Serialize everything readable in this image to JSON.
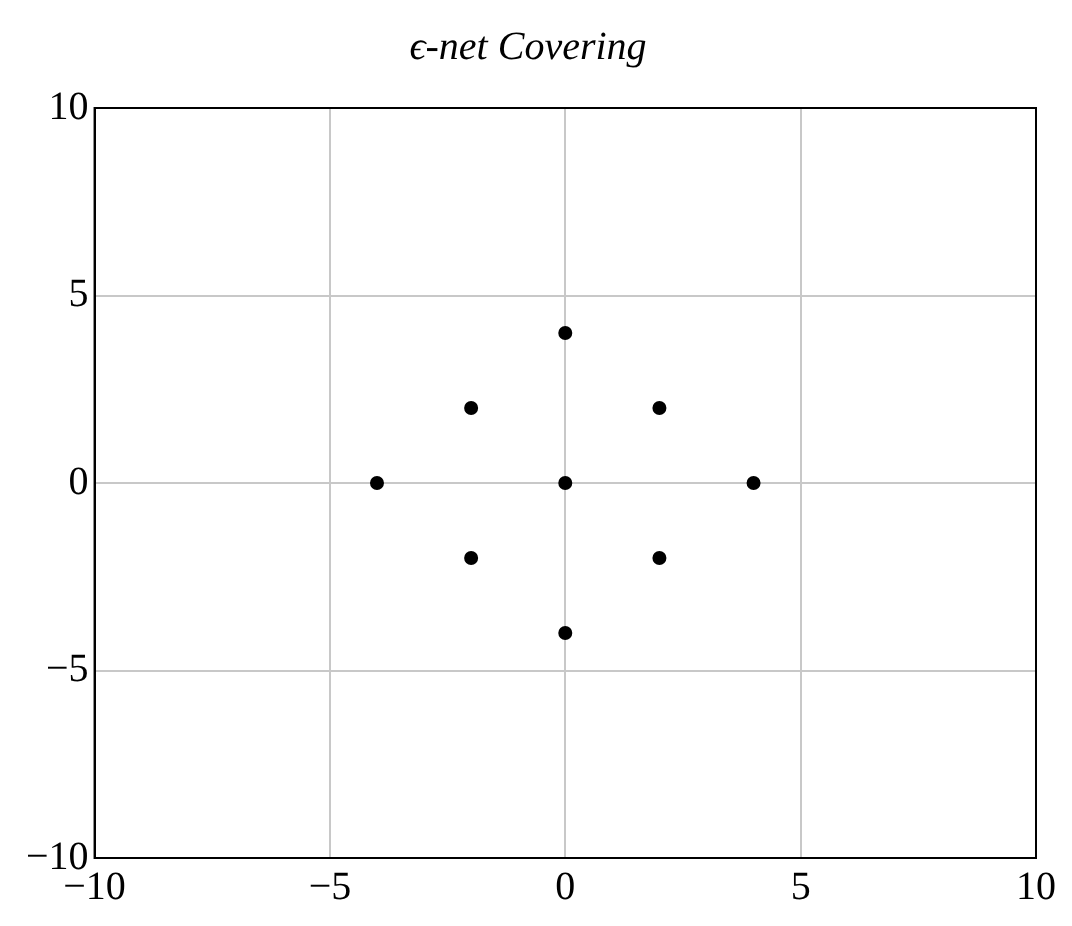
{
  "chart_data": {
    "type": "scatter",
    "title": "ϵ-net Covering",
    "x": [
      0,
      -2,
      2,
      -4,
      0,
      4,
      -2,
      2,
      0
    ],
    "series": [
      {
        "color": "#000000",
        "values": [
          4,
          2,
          2,
          0,
          0,
          0,
          -2,
          -2,
          -4
        ]
      }
    ],
    "xlim": [
      -10,
      10
    ],
    "ylim": [
      -10,
      10
    ],
    "xticks": [
      {
        "value": -10,
        "label": "−10"
      },
      {
        "value": -5,
        "label": "−5"
      },
      0,
      5,
      10
    ],
    "yticks": [
      {
        "value": -10,
        "label": "−10"
      },
      {
        "value": -5,
        "label": "−5"
      },
      0,
      5,
      10
    ],
    "grid": true,
    "marker": "circle"
  }
}
